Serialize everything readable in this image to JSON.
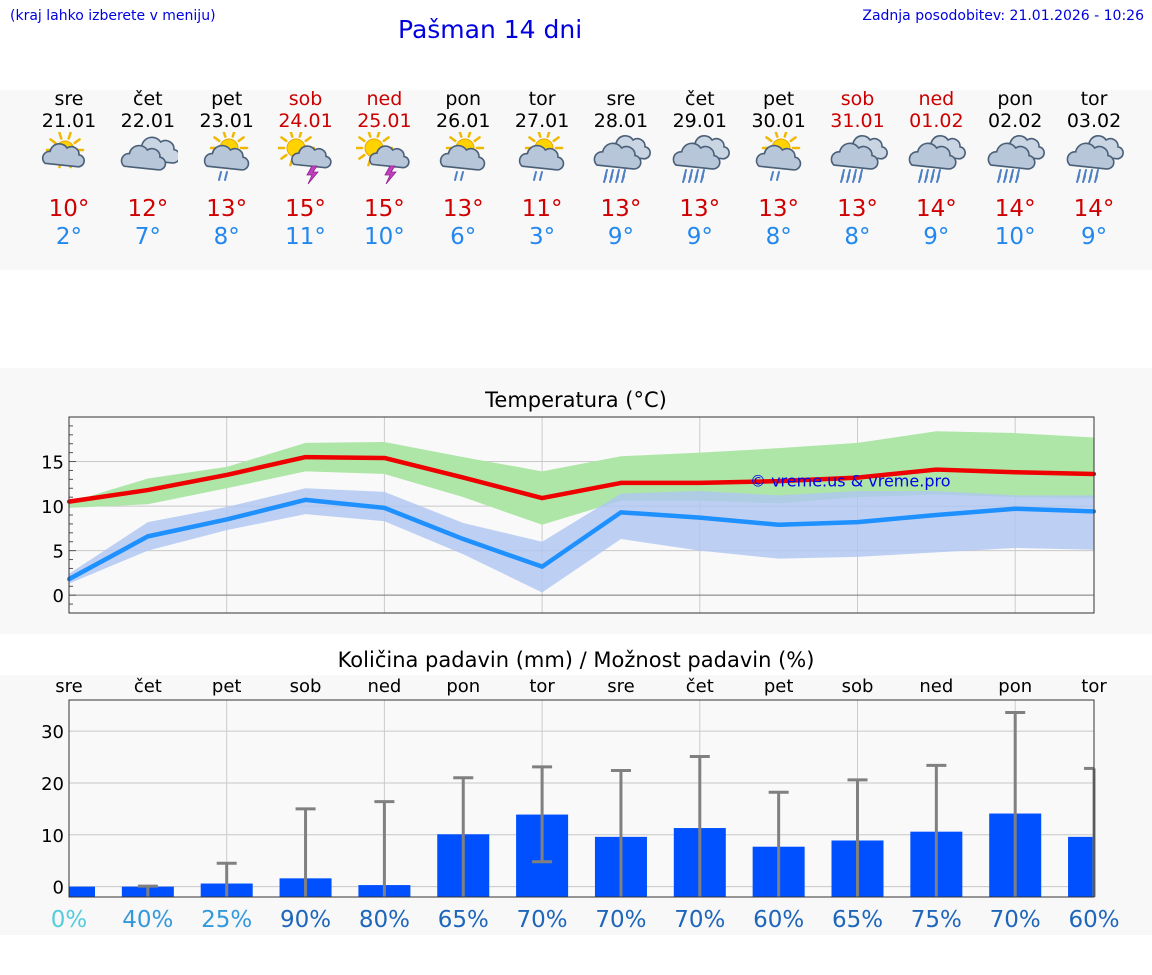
{
  "header": {
    "hint": "(kraj lahko izberete v meniju)",
    "title": "Pašman 14 dni",
    "updated": "Zadnja posodobitev: 21.01.2026 - 10:26"
  },
  "colors": {
    "link_blue": "#0000e0",
    "weekday": "#000000",
    "weekend": "#cc0000",
    "tmax": "#d00000",
    "tmin": "#2288ee",
    "max_line": "#ee0000",
    "max_band": "#aee6a8",
    "min_line": "#1e90ff",
    "min_band": "#aec6f2",
    "overlap_band": "#7cbfb8",
    "bar": "#0050ff",
    "whisker": "#808080"
  },
  "days": [
    {
      "name": "sre",
      "date": "21.01",
      "weekend": false,
      "icon": "sun-cloud-icon",
      "tmax": "10°",
      "tmin": "2°"
    },
    {
      "name": "čet",
      "date": "22.01",
      "weekend": false,
      "icon": "cloud-icon",
      "tmax": "12°",
      "tmin": "7°"
    },
    {
      "name": "pet",
      "date": "23.01",
      "weekend": false,
      "icon": "sun-cloud-rain-icon",
      "tmax": "13°",
      "tmin": "8°"
    },
    {
      "name": "sob",
      "date": "24.01",
      "weekend": true,
      "icon": "sun-cloud-thunder-icon",
      "tmax": "15°",
      "tmin": "11°"
    },
    {
      "name": "ned",
      "date": "25.01",
      "weekend": true,
      "icon": "sun-cloud-thunder-icon",
      "tmax": "15°",
      "tmin": "10°"
    },
    {
      "name": "pon",
      "date": "26.01",
      "weekend": false,
      "icon": "sun-cloud-rain-icon",
      "tmax": "13°",
      "tmin": "6°"
    },
    {
      "name": "tor",
      "date": "27.01",
      "weekend": false,
      "icon": "sun-cloud-rain-icon",
      "tmax": "11°",
      "tmin": "3°"
    },
    {
      "name": "sre",
      "date": "28.01",
      "weekend": false,
      "icon": "cloud-heavy-rain-icon",
      "tmax": "13°",
      "tmin": "9°"
    },
    {
      "name": "čet",
      "date": "29.01",
      "weekend": false,
      "icon": "cloud-heavy-rain-icon",
      "tmax": "13°",
      "tmin": "9°"
    },
    {
      "name": "pet",
      "date": "30.01",
      "weekend": false,
      "icon": "sun-cloud-rain-icon",
      "tmax": "13°",
      "tmin": "8°"
    },
    {
      "name": "sob",
      "date": "31.01",
      "weekend": true,
      "icon": "cloud-heavy-rain-icon",
      "tmax": "13°",
      "tmin": "8°"
    },
    {
      "name": "ned",
      "date": "01.02",
      "weekend": true,
      "icon": "cloud-heavy-rain-icon",
      "tmax": "14°",
      "tmin": "9°"
    },
    {
      "name": "pon",
      "date": "02.02",
      "weekend": false,
      "icon": "cloud-heavy-rain-icon",
      "tmax": "14°",
      "tmin": "10°"
    },
    {
      "name": "tor",
      "date": "03.02",
      "weekend": false,
      "icon": "cloud-heavy-rain-icon",
      "tmax": "14°",
      "tmin": "9°"
    }
  ],
  "chart_data": [
    {
      "type": "line",
      "title": "Temperatura (°C)",
      "watermark": "© vreme.us & vreme.pro",
      "x": [
        0,
        1,
        2,
        3,
        4,
        5,
        6,
        7,
        8,
        9,
        10,
        11,
        12,
        13
      ],
      "ylim": [
        -2,
        20
      ],
      "yticks": [
        0,
        5,
        10,
        15
      ],
      "grid": true,
      "series": [
        {
          "name": "max",
          "values": [
            10.5,
            11.8,
            13.5,
            15.5,
            15.4,
            13.2,
            10.9,
            12.6,
            12.6,
            12.8,
            13.2,
            14.1,
            13.8,
            13.6
          ],
          "band_low": [
            9.8,
            10.2,
            12.0,
            13.9,
            13.6,
            11.0,
            7.9,
            10.6,
            10.6,
            10.3,
            11.0,
            11.3,
            11.0,
            10.9
          ],
          "band_high": [
            10.4,
            13.1,
            14.4,
            17.1,
            17.2,
            15.5,
            13.9,
            15.6,
            16.0,
            16.5,
            17.1,
            18.4,
            18.2,
            17.7
          ]
        },
        {
          "name": "min",
          "values": [
            1.8,
            6.6,
            8.5,
            10.7,
            9.8,
            6.3,
            3.2,
            9.3,
            8.7,
            7.9,
            8.2,
            9.0,
            9.7,
            9.4
          ],
          "band_low": [
            1.3,
            5.0,
            7.3,
            9.1,
            8.3,
            4.6,
            0.3,
            6.3,
            5.0,
            4.1,
            4.3,
            4.8,
            5.3,
            5.1
          ],
          "band_high": [
            2.4,
            8.2,
            9.9,
            12.0,
            11.6,
            8.1,
            6.0,
            11.4,
            11.7,
            11.2,
            11.7,
            11.7,
            11.2,
            11.2
          ]
        }
      ]
    },
    {
      "type": "bar",
      "title": "Količina padavin (mm) / Možnost padavin (%)",
      "categories": [
        "sre",
        "čet",
        "pet",
        "sob",
        "ned",
        "pon",
        "tor",
        "sre",
        "čet",
        "pet",
        "sob",
        "ned",
        "pon",
        "tor"
      ],
      "values": [
        0,
        0,
        0.6,
        1.6,
        0.3,
        10.1,
        13.9,
        9.6,
        11.3,
        7.7,
        8.9,
        10.6,
        14.1,
        9.6
      ],
      "err_low": [
        0,
        0,
        0,
        0,
        0,
        0,
        4.8,
        0,
        0,
        0,
        0,
        0,
        0,
        0
      ],
      "err_high": [
        0,
        0.1,
        4.5,
        15.0,
        16.4,
        21.0,
        23.1,
        22.4,
        25.1,
        18.2,
        20.6,
        23.4,
        33.6,
        22.8
      ],
      "probabilities": [
        "0%",
        "40%",
        "25%",
        "90%",
        "80%",
        "65%",
        "70%",
        "70%",
        "70%",
        "60%",
        "65%",
        "75%",
        "70%",
        "60%"
      ],
      "prob_colors": [
        "#55ccdd",
        "#3399dd",
        "#3399dd",
        "#1e66bb",
        "#1e66bb",
        "#1e66bb",
        "#1e66bb",
        "#1e66bb",
        "#1e66bb",
        "#1e66bb",
        "#1e66bb",
        "#1e66bb",
        "#1e66bb",
        "#1e66bb"
      ],
      "ylim": [
        -2,
        36
      ],
      "yticks": [
        0,
        10,
        20,
        30
      ],
      "grid": true
    }
  ]
}
